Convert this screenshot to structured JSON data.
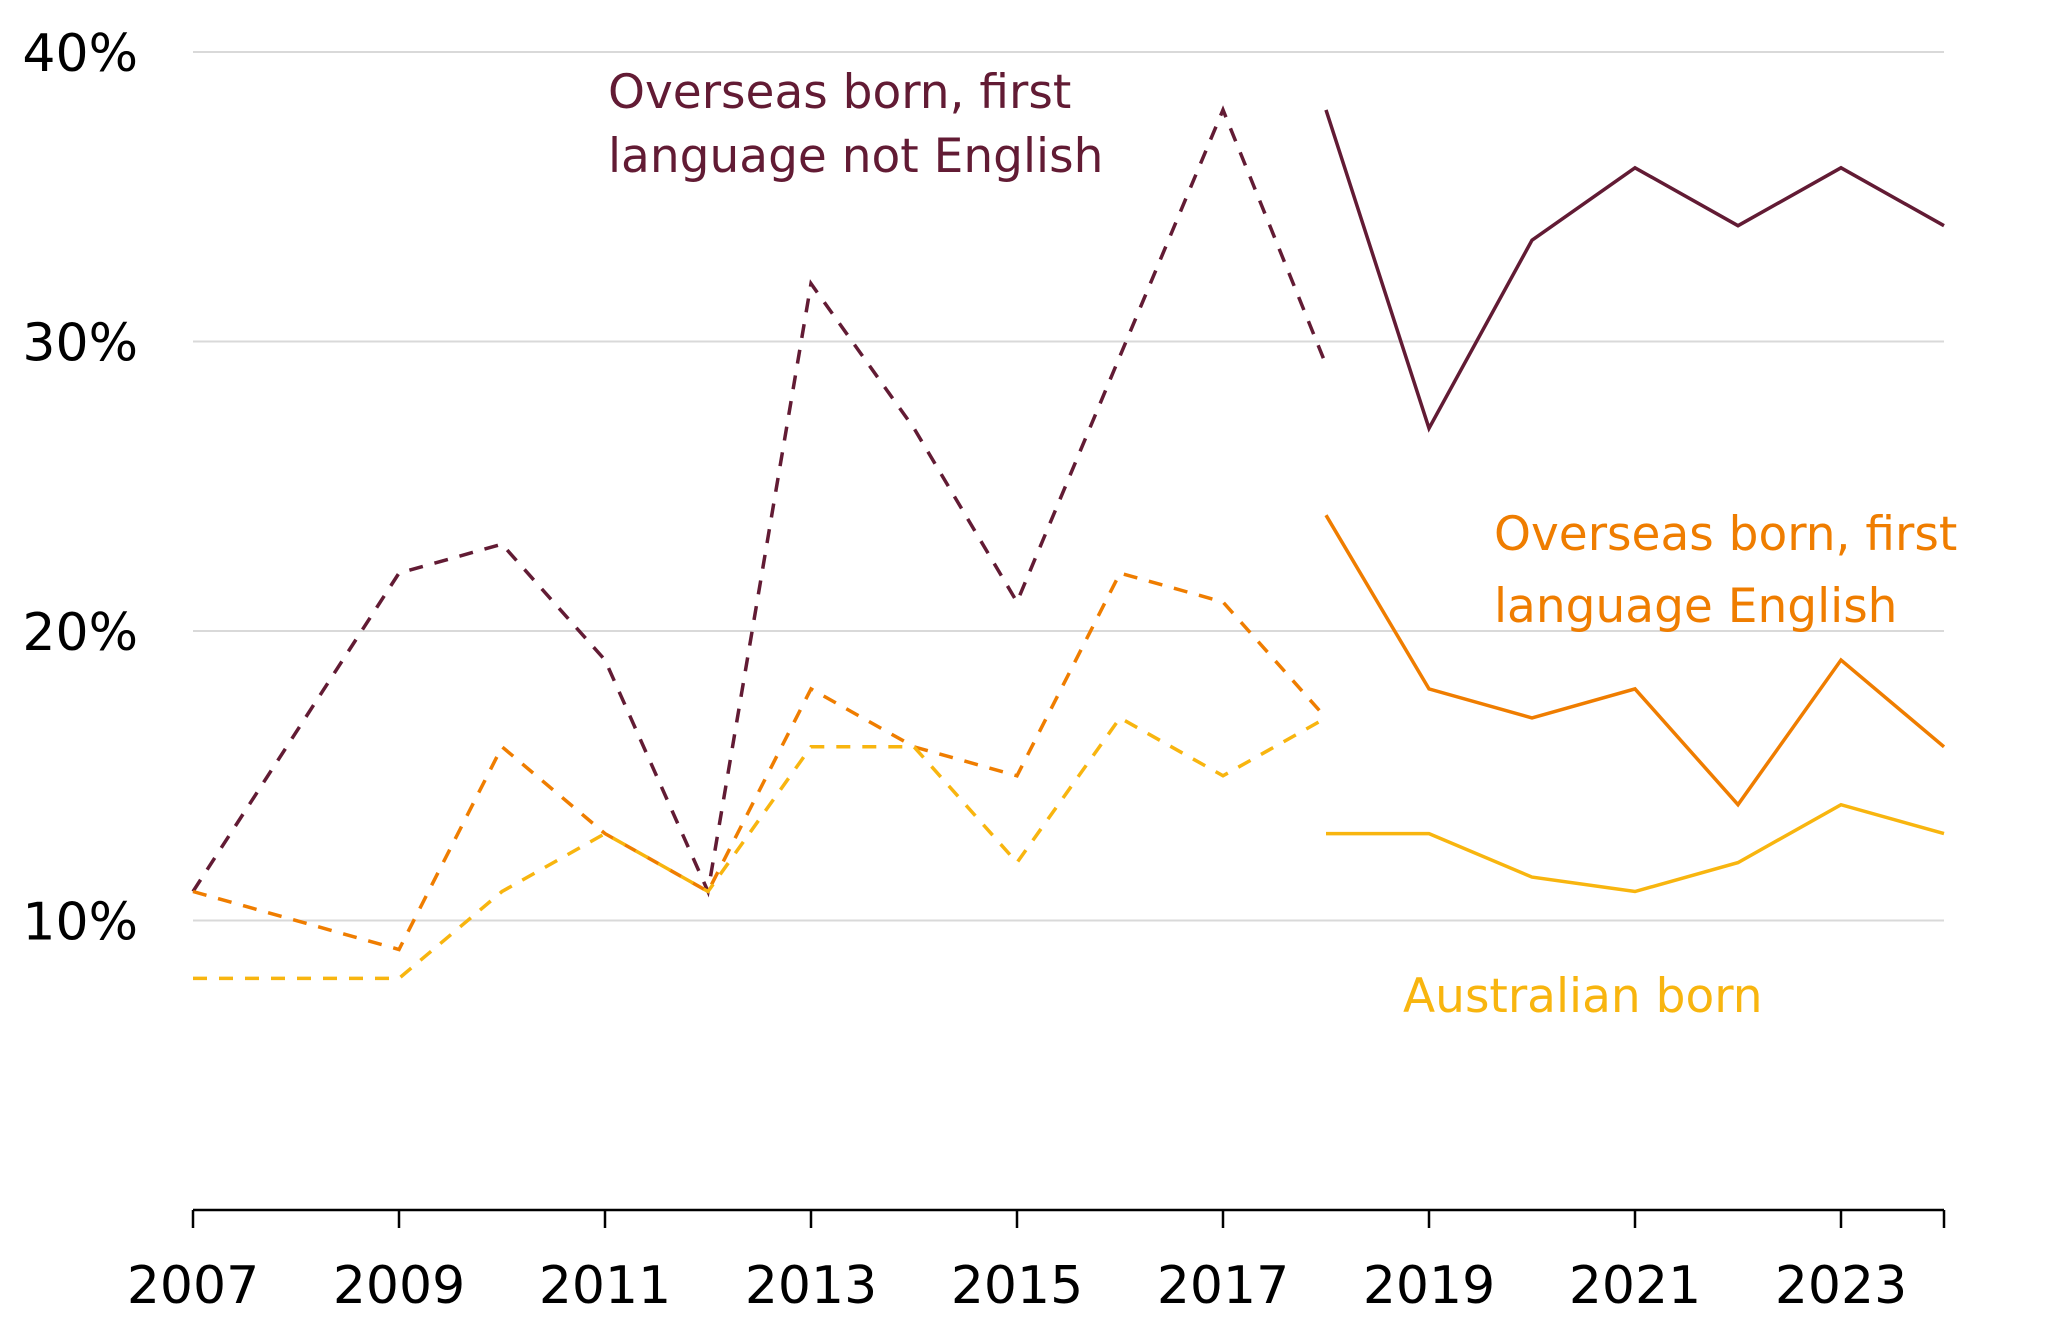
{
  "chart_data": {
    "type": "line",
    "title": "",
    "xlabel": "",
    "ylabel": "",
    "xlim": [
      2007,
      2024
    ],
    "ylim": [
      0,
      40
    ],
    "grid": true,
    "y_ticks": [
      10,
      20,
      30,
      40
    ],
    "y_tick_labels": [
      "10%",
      "20%",
      "30%",
      "40%"
    ],
    "x_ticks": [
      2007,
      2009,
      2011,
      2013,
      2015,
      2017,
      2019,
      2021,
      2023
    ],
    "x_tick_labels": [
      "2007",
      "2009",
      "2011",
      "2013",
      "2015",
      "2017",
      "2019",
      "2021",
      "2023"
    ],
    "x_minor_ticks": [
      2007,
      2009,
      2011,
      2013,
      2015,
      2017,
      2019,
      2021,
      2023,
      2024
    ],
    "legend": "direct labels",
    "series": [
      {
        "name": "Overseas born, first language not English",
        "label_lines": [
          "Overseas born, first",
          "language not English"
        ],
        "color": "#621b34",
        "segments": [
          {
            "style": "dashed",
            "x": [
              2007,
              2009,
              2010,
              2011,
              2012,
              2013,
              2014,
              2015,
              2016,
              2017,
              2018
            ],
            "y": [
              11,
              22,
              23,
              19,
              11,
              32,
              27,
              21,
              29.5,
              38,
              29.2
            ]
          },
          {
            "style": "solid",
            "x": [
              2018,
              2019,
              2020,
              2021,
              2022,
              2023,
              2024
            ],
            "y": [
              38,
              27,
              33.5,
              36,
              34,
              36,
              34
            ]
          }
        ]
      },
      {
        "name": "Overseas born, first language English",
        "label_lines": [
          "Overseas born, first",
          "language English"
        ],
        "color": "#ef7d00",
        "segments": [
          {
            "style": "dashed",
            "x": [
              2007,
              2009,
              2010,
              2011,
              2012,
              2013,
              2014,
              2015,
              2016,
              2017,
              2018
            ],
            "y": [
              11,
              9,
              16,
              13,
              11,
              18,
              16,
              15,
              22,
              21,
              17
            ]
          },
          {
            "style": "solid",
            "x": [
              2018,
              2019,
              2020,
              2021,
              2022,
              2023,
              2024
            ],
            "y": [
              24,
              18,
              17,
              18,
              14,
              19,
              16
            ]
          }
        ]
      },
      {
        "name": "Australian born",
        "label_lines": [
          "Australian born"
        ],
        "color": "#f8b50f",
        "segments": [
          {
            "style": "dashed",
            "x": [
              2007,
              2009,
              2010,
              2011,
              2012,
              2013,
              2014,
              2015,
              2016,
              2017,
              2018
            ],
            "y": [
              8,
              8,
              11,
              13,
              11,
              16,
              16,
              12,
              17,
              15,
              17
            ]
          },
          {
            "style": "solid",
            "x": [
              2018,
              2019,
              2020,
              2021,
              2022,
              2023,
              2024
            ],
            "y": [
              13,
              13,
              11.5,
              11,
              12,
              14,
              13
            ]
          }
        ]
      }
    ]
  }
}
